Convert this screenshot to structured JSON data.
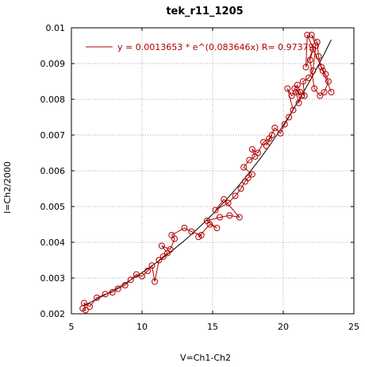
{
  "chart_data": {
    "type": "scatter",
    "title": "tek_r11_1205",
    "xlabel": "V=Ch1-Ch2",
    "ylabel": "I=Ch2/2000",
    "xlim": [
      5,
      25
    ],
    "ylim": [
      0.002,
      0.01
    ],
    "xticks": [
      5,
      10,
      15,
      20,
      25
    ],
    "yticks": [
      0.002,
      0.003,
      0.004,
      0.005,
      0.006,
      0.007,
      0.008,
      0.009,
      0.01
    ],
    "xtick_labels": [
      "5",
      "10",
      "15",
      "20",
      "25"
    ],
    "ytick_labels": [
      "0.002",
      "0.003",
      "0.004",
      "0.005",
      "0.006",
      "0.007",
      "0.008",
      "0.009",
      "0.01"
    ],
    "grid": true,
    "legend_position": "top",
    "colors": {
      "data": "#b00000",
      "fit": "#000000"
    },
    "series": [
      {
        "kind": "data",
        "marker": "circle",
        "x": [
          5.8,
          6.0,
          5.9,
          6.3,
          6.8,
          7.4,
          7.9,
          8.3,
          8.8,
          9.2,
          9.6,
          10.0,
          10.4,
          10.7,
          10.9,
          11.2,
          11.5,
          11.8,
          11.4,
          12.0,
          12.3,
          12.1,
          13.0,
          13.5,
          14.2,
          14.0,
          14.8,
          15.3,
          14.6,
          15.5,
          16.2,
          16.9,
          15.8,
          15.2,
          16.1,
          16.6,
          17.0,
          17.3,
          17.5,
          17.8,
          17.2,
          17.6,
          18.0,
          17.8,
          18.2,
          18.6,
          19.0,
          19.2,
          18.8,
          19.4,
          19.8,
          20.1,
          20.4,
          20.7,
          20.3,
          20.6,
          20.9,
          21.1,
          21.3,
          20.8,
          21.0,
          21.2,
          21.5,
          21.4,
          21.8,
          22.1,
          22.3,
          22.0,
          22.4,
          22.5,
          22.7,
          23.0,
          23.2,
          22.9,
          22.6,
          22.2,
          21.9,
          22.1,
          21.6,
          21.7,
          22.8,
          23.4
        ],
        "y": [
          0.00215,
          0.0021,
          0.0023,
          0.0022,
          0.00245,
          0.00255,
          0.0026,
          0.0027,
          0.0028,
          0.00295,
          0.0031,
          0.00305,
          0.0032,
          0.00335,
          0.0029,
          0.0035,
          0.0036,
          0.0037,
          0.0039,
          0.0038,
          0.0041,
          0.0042,
          0.0044,
          0.0043,
          0.0042,
          0.00415,
          0.0045,
          0.0044,
          0.0046,
          0.0047,
          0.00475,
          0.0047,
          0.0052,
          0.0049,
          0.0051,
          0.0053,
          0.0055,
          0.0057,
          0.0058,
          0.0059,
          0.0061,
          0.0063,
          0.0064,
          0.0066,
          0.0065,
          0.0068,
          0.0069,
          0.007,
          0.0067,
          0.0072,
          0.00705,
          0.0073,
          0.0075,
          0.0077,
          0.0083,
          0.0081,
          0.0082,
          0.0079,
          0.0081,
          0.0083,
          0.0084,
          0.0082,
          0.0081,
          0.0085,
          0.0086,
          0.0088,
          0.0095,
          0.0098,
          0.0096,
          0.0092,
          0.0089,
          0.0087,
          0.0085,
          0.0082,
          0.0081,
          0.0083,
          0.0091,
          0.0094,
          0.0089,
          0.0098,
          0.0088,
          0.0082
        ]
      },
      {
        "kind": "fit",
        "name": "y = 0.0013653 * e^(0.083646x)   R= 0.97379",
        "equation": {
          "a": 0.0013653,
          "b": 0.083646,
          "r": 0.97379
        },
        "x_range": [
          5.8,
          23.4
        ]
      }
    ]
  }
}
